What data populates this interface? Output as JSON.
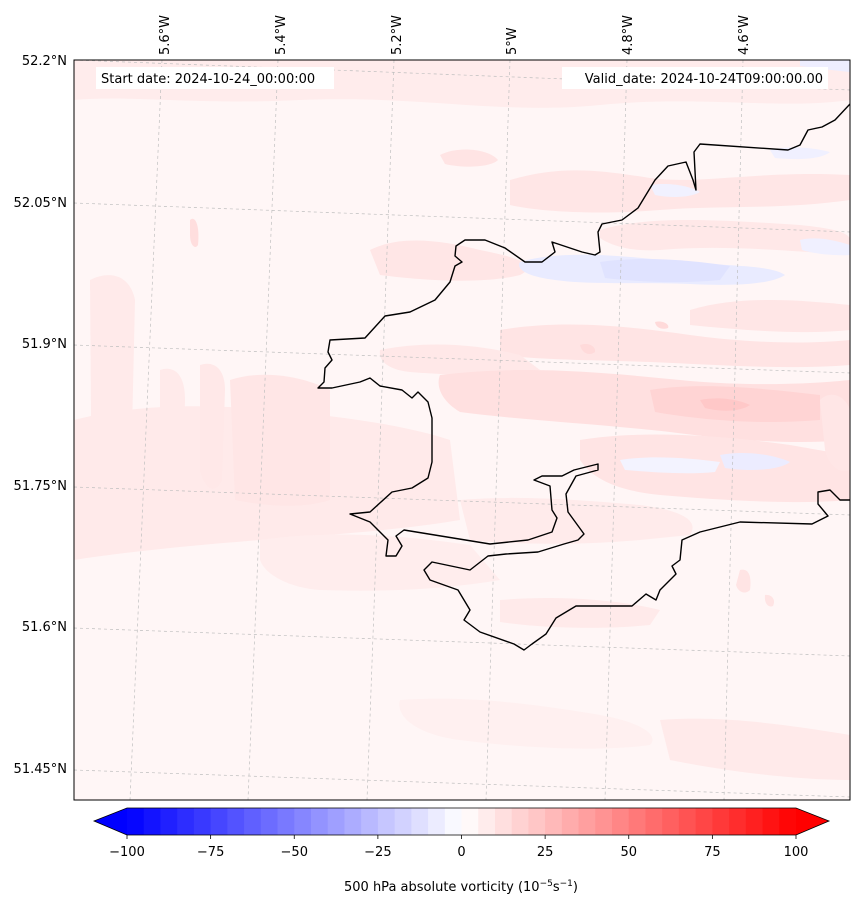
{
  "header": {
    "start_date": "Start date: 2024-10-24_00:00:00",
    "valid_date": "Valid_date: 2024-10-24T09:00:00.00"
  },
  "map": {
    "longitude_labels": [
      "5.6°W",
      "5.4°W",
      "5.2°W",
      "5°W",
      "4.8°W",
      "4.6°W"
    ],
    "latitude_labels": [
      "52.2°N",
      "52.05°N",
      "51.9°N",
      "51.75°N",
      "51.6°N",
      "51.45°N"
    ],
    "field": "500 hPa absolute vorticity",
    "gridlines": true,
    "coastline_color": "#000000"
  },
  "colorbar": {
    "label_main": "500 hPa absolute vorticity (10",
    "label_exp1": "−5",
    "label_mid": "s",
    "label_exp2": "−1",
    "label_end": ")",
    "ticks": [
      "−100",
      "−75",
      "−50",
      "−25",
      "0",
      "25",
      "50",
      "75",
      "100"
    ],
    "tick_values": [
      -100,
      -75,
      -50,
      -25,
      0,
      25,
      50,
      75,
      100
    ],
    "range": [
      -100,
      100
    ],
    "levels": 41,
    "cmap": "bwr",
    "extend": "both",
    "min_color": "#0000ff",
    "mid_color": "#ffffff",
    "max_color": "#ff0000"
  }
}
